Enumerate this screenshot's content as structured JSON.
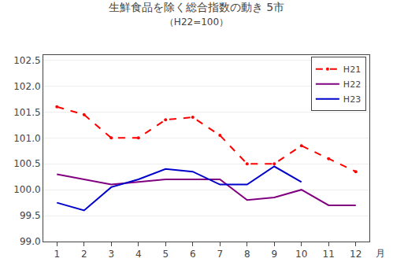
{
  "chart_data": {
    "type": "line",
    "title": "生鮮食品を除く総合指数の動き 5市",
    "subtitle": "（H22=100）",
    "annotations": [
      "月"
    ],
    "x": [
      1,
      2,
      3,
      4,
      5,
      6,
      7,
      8,
      9,
      10,
      11,
      12
    ],
    "xlim": [
      0.5,
      12.5
    ],
    "xticks": [
      1,
      2,
      3,
      4,
      5,
      6,
      7,
      8,
      9,
      10,
      11,
      12
    ],
    "ylim": [
      99.0,
      102.6
    ],
    "yticks": [
      {
        "value": 99.0,
        "label": "99.0"
      },
      99.5,
      {
        "value": 100.0,
        "label": "100.0"
      },
      100.5,
      {
        "value": 101.0,
        "label": "101.0"
      },
      101.5,
      {
        "value": 102.0,
        "label": "102.0"
      },
      102.5
    ],
    "grid": true,
    "legend": "upper right",
    "series": [
      {
        "name": "H21",
        "color": "#ff0000",
        "line_style": "dashed",
        "marker": "dot",
        "values": [
          101.6,
          101.45,
          101.0,
          101.0,
          101.35,
          101.4,
          101.05,
          100.5,
          100.5,
          100.85,
          100.6,
          100.35
        ]
      },
      {
        "name": "H22",
        "color": "#800080",
        "line_style": "solid",
        "values": [
          100.3,
          100.2,
          100.1,
          100.15,
          100.2,
          100.2,
          100.2,
          99.8,
          99.85,
          100.0,
          99.7,
          99.7
        ]
      },
      {
        "name": "H23",
        "color": "#0000cc",
        "line_style": "solid",
        "values": [
          99.75,
          99.6,
          100.05,
          100.2,
          100.4,
          100.35,
          100.1,
          100.1,
          100.45,
          100.15,
          null,
          null
        ]
      }
    ]
  }
}
